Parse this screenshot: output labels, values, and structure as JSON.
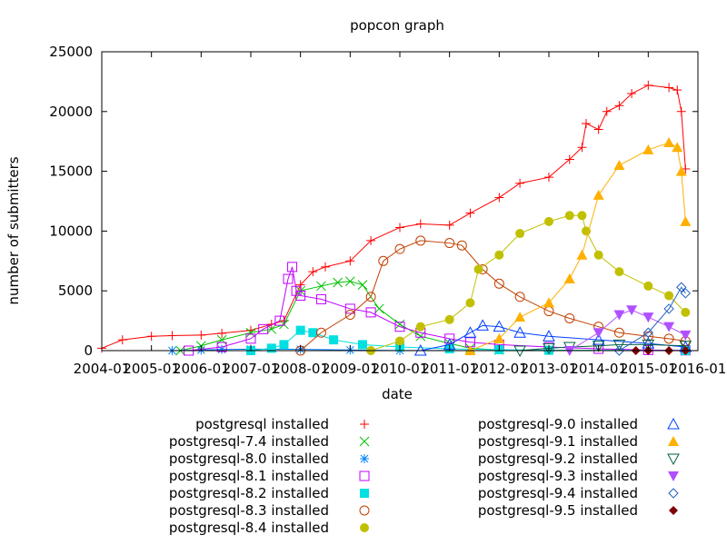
{
  "chart_data": {
    "type": "line",
    "title": "popcon graph",
    "xlabel": "date",
    "ylabel": "number of submitters",
    "ylim": [
      0,
      25000
    ],
    "xlim": [
      "2004-01",
      "2016-01"
    ],
    "x_ticks": [
      "2004-01",
      "2005-01",
      "2006-01",
      "2007-01",
      "2008-01",
      "2009-01",
      "2010-01",
      "2011-01",
      "2012-01",
      "2013-01",
      "2014-01",
      "2015-01",
      "2016-01"
    ],
    "y_ticks": [
      0,
      5000,
      10000,
      15000,
      20000,
      25000
    ],
    "grid": false,
    "legend_position": "below",
    "series": [
      {
        "name": "postgresql installed",
        "color": "#ff0000",
        "marker": "plus",
        "points": [
          [
            "2004-01",
            200
          ],
          [
            "2004-06",
            900
          ],
          [
            "2005-01",
            1200
          ],
          [
            "2005-06",
            1250
          ],
          [
            "2006-01",
            1300
          ],
          [
            "2006-06",
            1450
          ],
          [
            "2007-01",
            1700
          ],
          [
            "2007-06",
            2200
          ],
          [
            "2007-09",
            2500
          ],
          [
            "2008-01",
            5500
          ],
          [
            "2008-04",
            6600
          ],
          [
            "2008-07",
            7000
          ],
          [
            "2009-01",
            7500
          ],
          [
            "2009-06",
            9200
          ],
          [
            "2010-01",
            10300
          ],
          [
            "2010-06",
            10600
          ],
          [
            "2011-01",
            10500
          ],
          [
            "2011-06",
            11500
          ],
          [
            "2012-01",
            12800
          ],
          [
            "2012-06",
            14000
          ],
          [
            "2013-01",
            14500
          ],
          [
            "2013-06",
            16000
          ],
          [
            "2013-09",
            17000
          ],
          [
            "2013-10",
            19000
          ],
          [
            "2014-01",
            18500
          ],
          [
            "2014-03",
            20000
          ],
          [
            "2014-06",
            20500
          ],
          [
            "2014-09",
            21500
          ],
          [
            "2015-01",
            22200
          ],
          [
            "2015-06",
            22000
          ],
          [
            "2015-08",
            21800
          ],
          [
            "2015-09",
            20000
          ],
          [
            "2015-10",
            15200
          ]
        ]
      },
      {
        "name": "postgresql-7.4 installed",
        "color": "#00c000",
        "marker": "cross",
        "points": [
          [
            "2005-08",
            0
          ],
          [
            "2006-01",
            400
          ],
          [
            "2006-06",
            900
          ],
          [
            "2007-01",
            1500
          ],
          [
            "2007-06",
            1800
          ],
          [
            "2007-09",
            2200
          ],
          [
            "2008-01",
            5000
          ],
          [
            "2008-06",
            5400
          ],
          [
            "2008-10",
            5700
          ],
          [
            "2009-01",
            5800
          ],
          [
            "2009-04",
            5500
          ],
          [
            "2009-08",
            3500
          ],
          [
            "2010-01",
            2200
          ],
          [
            "2010-06",
            1200
          ],
          [
            "2011-01",
            600
          ],
          [
            "2011-06",
            200
          ],
          [
            "2012-01",
            50
          ],
          [
            "2015-10",
            0
          ]
        ]
      },
      {
        "name": "postgresql-8.0 installed",
        "color": "#0080ff",
        "marker": "asterisk",
        "points": [
          [
            "2005-06",
            0
          ],
          [
            "2006-01",
            50
          ],
          [
            "2006-06",
            100
          ],
          [
            "2007-01",
            120
          ],
          [
            "2008-01",
            100
          ],
          [
            "2009-01",
            50
          ],
          [
            "2010-01",
            10
          ],
          [
            "2015-10",
            0
          ]
        ]
      },
      {
        "name": "postgresql-8.1 installed",
        "color": "#c000ff",
        "marker": "square",
        "points": [
          [
            "2005-10",
            0
          ],
          [
            "2006-06",
            300
          ],
          [
            "2007-01",
            1000
          ],
          [
            "2007-04",
            1800
          ],
          [
            "2007-08",
            2500
          ],
          [
            "2007-10",
            6000
          ],
          [
            "2007-11",
            7000
          ],
          [
            "2007-12",
            5000
          ],
          [
            "2008-01",
            4600
          ],
          [
            "2008-06",
            4300
          ],
          [
            "2009-01",
            3500
          ],
          [
            "2009-06",
            3200
          ],
          [
            "2010-01",
            2000
          ],
          [
            "2010-06",
            1500
          ],
          [
            "2011-01",
            1000
          ],
          [
            "2011-06",
            700
          ],
          [
            "2012-01",
            500
          ],
          [
            "2013-01",
            300
          ],
          [
            "2014-01",
            150
          ],
          [
            "2015-01",
            50
          ],
          [
            "2015-10",
            20
          ]
        ]
      },
      {
        "name": "postgresql-8.2 installed",
        "color": "#00e0e0",
        "marker": "filled-square",
        "points": [
          [
            "2007-01",
            0
          ],
          [
            "2007-06",
            200
          ],
          [
            "2007-09",
            500
          ],
          [
            "2008-01",
            1700
          ],
          [
            "2008-04",
            1500
          ],
          [
            "2008-09",
            900
          ],
          [
            "2009-04",
            500
          ],
          [
            "2010-01",
            300
          ],
          [
            "2011-01",
            150
          ],
          [
            "2012-01",
            80
          ],
          [
            "2013-01",
            30
          ],
          [
            "2015-10",
            0
          ]
        ]
      },
      {
        "name": "postgresql-8.3 installed",
        "color": "#c04000",
        "marker": "circle",
        "points": [
          [
            "2008-01",
            0
          ],
          [
            "2008-06",
            1500
          ],
          [
            "2009-01",
            3000
          ],
          [
            "2009-06",
            4500
          ],
          [
            "2009-09",
            7500
          ],
          [
            "2010-01",
            8500
          ],
          [
            "2010-06",
            9200
          ],
          [
            "2011-01",
            9000
          ],
          [
            "2011-04",
            8800
          ],
          [
            "2011-09",
            6800
          ],
          [
            "2012-01",
            5600
          ],
          [
            "2012-06",
            4500
          ],
          [
            "2013-01",
            3300
          ],
          [
            "2013-06",
            2700
          ],
          [
            "2014-01",
            2000
          ],
          [
            "2014-06",
            1500
          ],
          [
            "2015-01",
            1200
          ],
          [
            "2015-06",
            1000
          ],
          [
            "2015-10",
            800
          ]
        ]
      },
      {
        "name": "postgresql-8.4 installed",
        "color": "#c0c000",
        "marker": "filled-circle",
        "points": [
          [
            "2009-06",
            0
          ],
          [
            "2010-01",
            800
          ],
          [
            "2010-06",
            2000
          ],
          [
            "2011-01",
            2600
          ],
          [
            "2011-06",
            4000
          ],
          [
            "2011-08",
            6800
          ],
          [
            "2012-01",
            8000
          ],
          [
            "2012-06",
            9800
          ],
          [
            "2013-01",
            10800
          ],
          [
            "2013-06",
            11300
          ],
          [
            "2013-09",
            11300
          ],
          [
            "2013-10",
            10000
          ],
          [
            "2014-01",
            8000
          ],
          [
            "2014-06",
            6600
          ],
          [
            "2015-01",
            5400
          ],
          [
            "2015-06",
            4600
          ],
          [
            "2015-10",
            3200
          ]
        ]
      },
      {
        "name": "postgresql-9.0 installed",
        "color": "#0040ff",
        "marker": "triangle",
        "points": [
          [
            "2010-06",
            0
          ],
          [
            "2011-01",
            500
          ],
          [
            "2011-06",
            1500
          ],
          [
            "2011-09",
            2100
          ],
          [
            "2012-01",
            2000
          ],
          [
            "2012-06",
            1500
          ],
          [
            "2013-01",
            1200
          ],
          [
            "2014-01",
            900
          ],
          [
            "2015-01",
            600
          ],
          [
            "2015-10",
            300
          ]
        ]
      },
      {
        "name": "postgresql-9.1 installed",
        "color": "#ffb000",
        "marker": "filled-triangle",
        "points": [
          [
            "2011-06",
            0
          ],
          [
            "2012-01",
            1000
          ],
          [
            "2012-06",
            2800
          ],
          [
            "2013-01",
            4000
          ],
          [
            "2013-06",
            6000
          ],
          [
            "2013-09",
            8000
          ],
          [
            "2014-01",
            13000
          ],
          [
            "2014-06",
            15500
          ],
          [
            "2015-01",
            16800
          ],
          [
            "2015-06",
            17400
          ],
          [
            "2015-08",
            17000
          ],
          [
            "2015-09",
            15000
          ],
          [
            "2015-10",
            10800
          ]
        ]
      },
      {
        "name": "postgresql-9.2 installed",
        "color": "#006040",
        "marker": "triangle-down",
        "points": [
          [
            "2012-06",
            0
          ],
          [
            "2013-01",
            200
          ],
          [
            "2013-06",
            300
          ],
          [
            "2014-01",
            400
          ],
          [
            "2014-06",
            500
          ],
          [
            "2015-01",
            500
          ],
          [
            "2015-10",
            400
          ]
        ]
      },
      {
        "name": "postgresql-9.3 installed",
        "color": "#b050ff",
        "marker": "filled-triangle-down",
        "points": [
          [
            "2013-06",
            0
          ],
          [
            "2014-01",
            1500
          ],
          [
            "2014-06",
            3000
          ],
          [
            "2014-09",
            3400
          ],
          [
            "2015-01",
            2800
          ],
          [
            "2015-06",
            2000
          ],
          [
            "2015-10",
            1300
          ]
        ]
      },
      {
        "name": "postgresql-9.4 installed",
        "color": "#2060c0",
        "marker": "diamond",
        "points": [
          [
            "2014-06",
            0
          ],
          [
            "2015-01",
            1500
          ],
          [
            "2015-06",
            3500
          ],
          [
            "2015-09",
            5300
          ],
          [
            "2015-10",
            4800
          ]
        ]
      },
      {
        "name": "postgresql-9.5 installed",
        "color": "#800000",
        "marker": "filled-diamond",
        "points": [
          [
            "2014-10",
            0
          ],
          [
            "2015-01",
            0
          ],
          [
            "2015-06",
            0
          ],
          [
            "2015-10",
            0
          ]
        ]
      }
    ]
  }
}
